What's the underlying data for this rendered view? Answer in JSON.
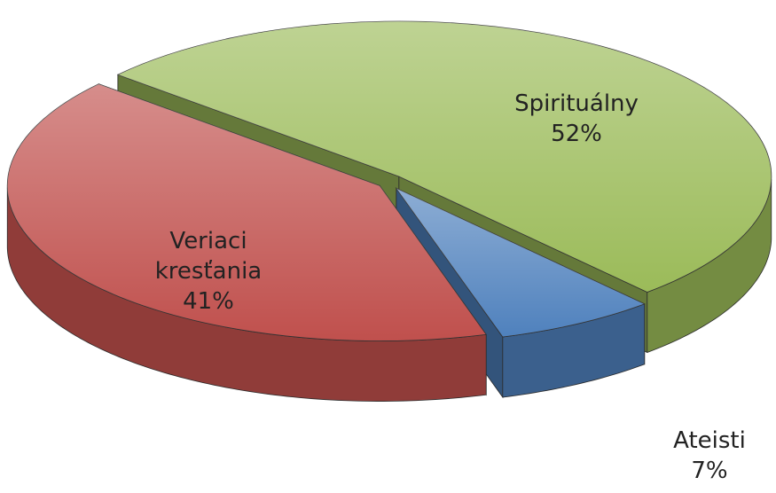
{
  "chart_data": {
    "type": "pie",
    "categories": [
      "Spirituálny",
      "Ateisti",
      "Veriaci kresťania"
    ],
    "values": [
      52,
      7,
      41
    ],
    "value_labels": [
      "52%",
      "7%",
      "41%"
    ],
    "colors": [
      "#9bbb59",
      "#4f81bd",
      "#c0504d"
    ]
  }
}
